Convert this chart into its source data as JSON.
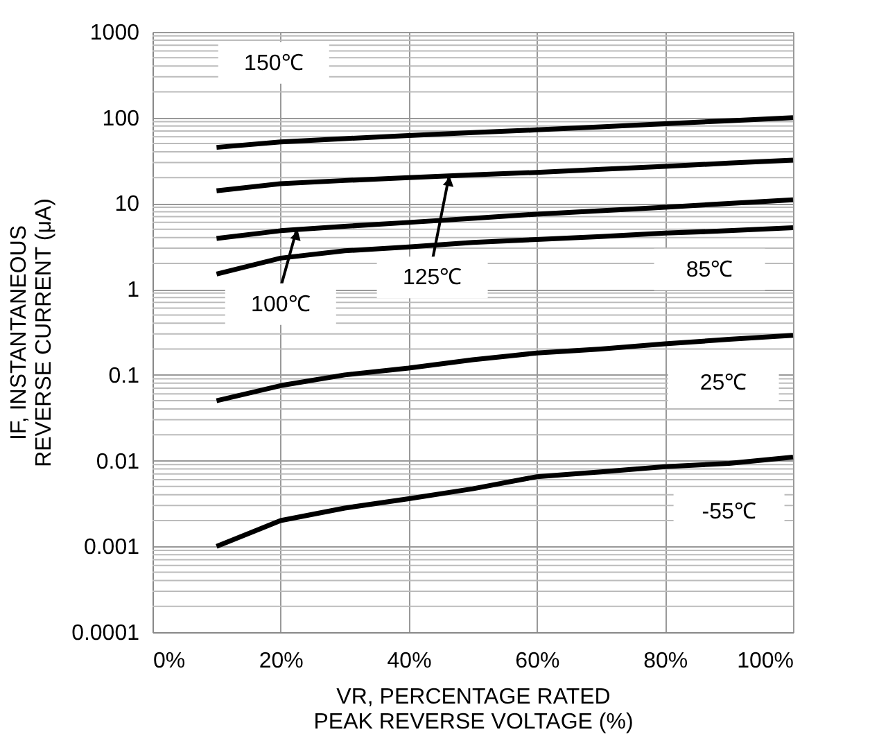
{
  "chart_data": {
    "type": "line",
    "xlabel": "VR, PERCENTAGE RATED PEAK REVERSE VOLTAGE (%)",
    "ylabel": "IF, INSTANTANEOUS REVERSE CURRENT (μA)",
    "log": "y",
    "grid": true,
    "legend": false,
    "marker": "none",
    "line_style": "solid",
    "xlim": [
      0,
      100
    ],
    "xticks": [
      {
        "value": 0,
        "label": "0%"
      },
      {
        "value": 20,
        "label": "20%"
      },
      {
        "value": 40,
        "label": "40%"
      },
      {
        "value": 60,
        "label": "60%"
      },
      {
        "value": 80,
        "label": "80%"
      },
      {
        "value": 100,
        "label": "100%"
      }
    ],
    "ylim": [
      0.0001,
      1000
    ],
    "yticks": [
      0.0001,
      0.001,
      0.01,
      0.1,
      1,
      10,
      100,
      1000
    ],
    "x": [
      10,
      20,
      30,
      40,
      50,
      60,
      70,
      80,
      90,
      100
    ],
    "series": [
      {
        "name": "150℃",
        "color": "#000000",
        "values": [
          45,
          52,
          57,
          62,
          67,
          72,
          78,
          85,
          92,
          100
        ]
      },
      {
        "name": "125℃",
        "color": "#000000",
        "values": [
          14,
          17,
          18.5,
          20,
          21.5,
          23,
          25,
          27,
          29.5,
          32
        ]
      },
      {
        "name": "100℃",
        "color": "#000000",
        "values": [
          3.9,
          4.8,
          5.4,
          6,
          6.7,
          7.5,
          8.2,
          9,
          10,
          11
        ]
      },
      {
        "name": "85℃",
        "color": "#000000",
        "values": [
          1.5,
          2.3,
          2.8,
          3.1,
          3.5,
          3.8,
          4.1,
          4.5,
          4.8,
          5.2
        ]
      },
      {
        "name": "25℃",
        "color": "#000000",
        "values": [
          0.05,
          0.075,
          0.1,
          0.12,
          0.15,
          0.18,
          0.2,
          0.23,
          0.26,
          0.29
        ]
      },
      {
        "name": "-55℃",
        "color": "#000000",
        "values": [
          0.001,
          0.002,
          0.0028,
          0.0036,
          0.0047,
          0.0065,
          0.0074,
          0.0085,
          0.0093,
          0.011
        ]
      }
    ]
  }
}
